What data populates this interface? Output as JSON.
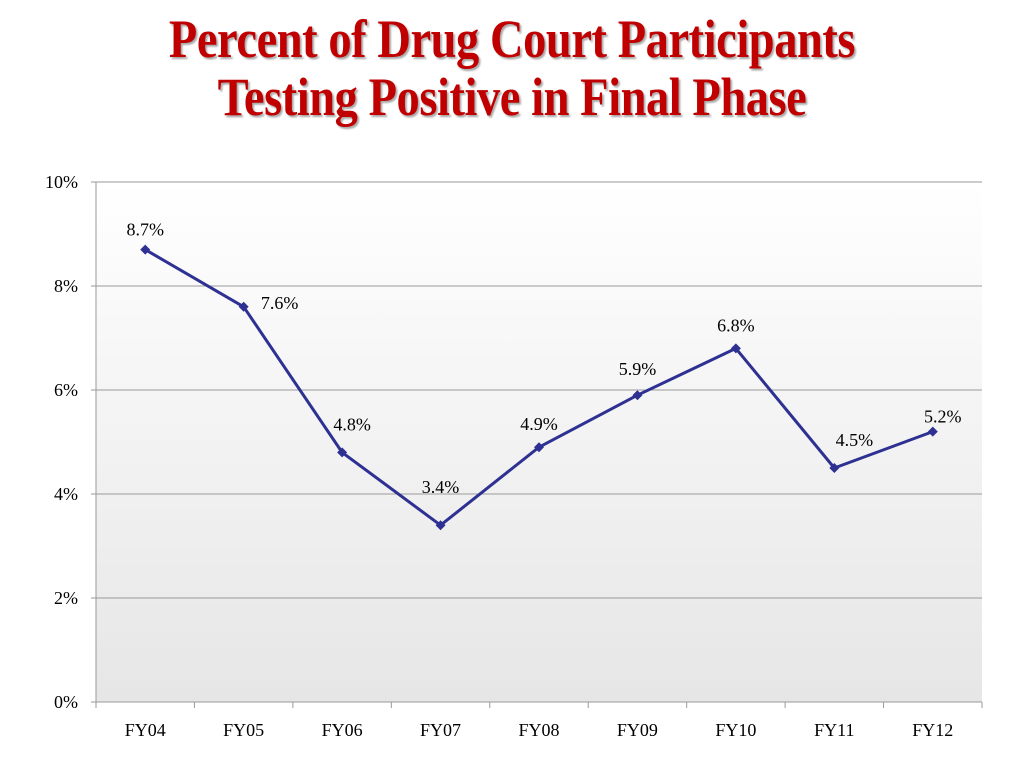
{
  "title": {
    "line1": "Percent of Drug Court Participants",
    "line2": "Testing Positive in Final Phase"
  },
  "chart_data": {
    "type": "line",
    "title": "Percent of Drug Court Participants Testing Positive in Final Phase",
    "xlabel": "",
    "ylabel": "",
    "categories": [
      "FY04",
      "FY05",
      "FY06",
      "FY07",
      "FY08",
      "FY09",
      "FY10",
      "FY11",
      "FY12"
    ],
    "series": [
      {
        "values": [
          8.7,
          7.6,
          4.8,
          3.4,
          4.9,
          5.9,
          6.8,
          4.5,
          5.2
        ],
        "labels": [
          "8.7%",
          "7.6%",
          "4.8%",
          "3.4%",
          "4.9%",
          "5.9%",
          "6.8%",
          "4.5%",
          "5.2%"
        ],
        "color": "#2e3192"
      }
    ],
    "ylim": [
      0,
      10
    ],
    "yticks": [
      0,
      2,
      4,
      6,
      8,
      10
    ],
    "ytick_labels": [
      "0%",
      "2%",
      "4%",
      "6%",
      "8%",
      "10%"
    ],
    "grid": true,
    "legend": "none"
  },
  "colors": {
    "title": "#c00000",
    "line": "#2e3192",
    "grid": "#9a9a9a"
  }
}
